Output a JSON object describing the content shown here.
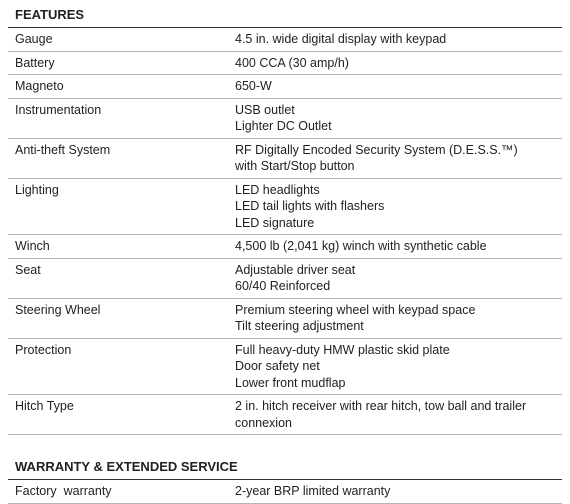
{
  "sections": [
    {
      "title": "FEATURES",
      "rows": [
        {
          "label": "Gauge",
          "lines": [
            "4.5 in. wide digital display with keypad"
          ]
        },
        {
          "label": "Battery",
          "lines": [
            "400 CCA (30 amp/h)"
          ]
        },
        {
          "label": "Magneto",
          "lines": [
            "650-W"
          ]
        },
        {
          "label": "Instrumentation",
          "lines": [
            "USB outlet",
            "Lighter DC Outlet"
          ]
        },
        {
          "label": "Anti-theft System",
          "lines": [
            "RF Digitally Encoded Security System (D.E.S.S.™)",
            "with Start/Stop button"
          ]
        },
        {
          "label": "Lighting",
          "lines": [
            "LED headlights",
            "LED tail lights with flashers",
            "LED signature"
          ]
        },
        {
          "label": "Winch",
          "lines": [
            "4,500 lb (2,041 kg) winch with synthetic cable"
          ]
        },
        {
          "label": "Seat",
          "lines": [
            "Adjustable driver seat",
            "60/40 Reinforced"
          ]
        },
        {
          "label": "Steering Wheel",
          "lines": [
            "Premium steering wheel with keypad space",
            "Tilt steering adjustment"
          ]
        },
        {
          "label": "Protection",
          "lines": [
            "Full heavy-duty HMW plastic skid plate",
            "Door safety net",
            "Lower front mudflap"
          ]
        },
        {
          "label": "Hitch Type",
          "lines": [
            "2 in. hitch receiver with rear hitch, tow ball and trailer",
            "connexion"
          ]
        }
      ]
    },
    {
      "title": "WARRANTY & EXTENDED SERVICE",
      "rows": [
        {
          "label": "Factory  warranty",
          "lines": [
            "2-year BRP limited warranty"
          ]
        }
      ]
    }
  ]
}
